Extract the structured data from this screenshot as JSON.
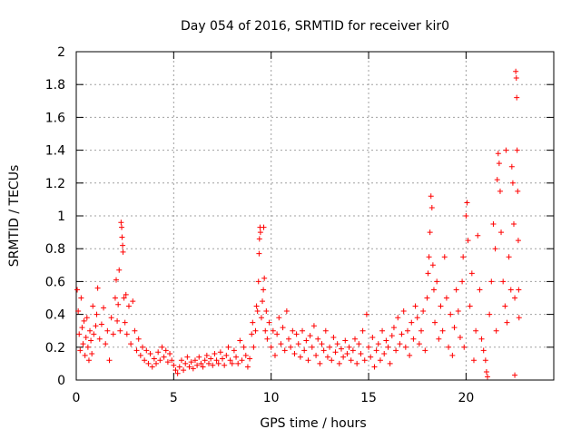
{
  "chart_data": {
    "type": "scatter",
    "title": "Day 054 of 2016, SRMTID for receiver kir0",
    "xlabel": "GPS time / hours",
    "ylabel": "SRMTID / TECUs",
    "xlim": [
      0,
      24.5
    ],
    "ylim": [
      0,
      2
    ],
    "xticks": [
      0,
      5,
      10,
      15,
      20
    ],
    "yticks": [
      0,
      0.2,
      0.4,
      0.6,
      0.8,
      1,
      1.2,
      1.4,
      1.6,
      1.8,
      2
    ],
    "grid": true,
    "marker": "+",
    "color": "#ff0000",
    "series": [
      {
        "name": "SRMTID",
        "points": [
          [
            0.05,
            0.55
          ],
          [
            0.1,
            0.42
          ],
          [
            0.15,
            0.28
          ],
          [
            0.2,
            0.18
          ],
          [
            0.25,
            0.5
          ],
          [
            0.3,
            0.32
          ],
          [
            0.35,
            0.22
          ],
          [
            0.4,
            0.36
          ],
          [
            0.45,
            0.15
          ],
          [
            0.5,
            0.26
          ],
          [
            0.55,
            0.38
          ],
          [
            0.6,
            0.2
          ],
          [
            0.65,
            0.12
          ],
          [
            0.7,
            0.3
          ],
          [
            0.75,
            0.24
          ],
          [
            0.8,
            0.16
          ],
          [
            0.85,
            0.45
          ],
          [
            0.9,
            0.28
          ],
          [
            1.0,
            0.33
          ],
          [
            1.05,
            0.4
          ],
          [
            1.1,
            0.56
          ],
          [
            1.2,
            0.25
          ],
          [
            1.3,
            0.34
          ],
          [
            1.4,
            0.44
          ],
          [
            1.5,
            0.22
          ],
          [
            1.6,
            0.3
          ],
          [
            1.7,
            0.12
          ],
          [
            1.8,
            0.38
          ],
          [
            1.9,
            0.28
          ],
          [
            2.0,
            0.5
          ],
          [
            2.05,
            0.61
          ],
          [
            2.1,
            0.36
          ],
          [
            2.15,
            0.46
          ],
          [
            2.2,
            0.67
          ],
          [
            2.25,
            0.3
          ],
          [
            2.3,
            0.96
          ],
          [
            2.33,
            0.93
          ],
          [
            2.35,
            0.87
          ],
          [
            2.38,
            0.82
          ],
          [
            2.4,
            0.78
          ],
          [
            2.45,
            0.5
          ],
          [
            2.5,
            0.35
          ],
          [
            2.55,
            0.52
          ],
          [
            2.6,
            0.28
          ],
          [
            2.7,
            0.45
          ],
          [
            2.8,
            0.22
          ],
          [
            2.9,
            0.48
          ],
          [
            3.0,
            0.3
          ],
          [
            3.1,
            0.18
          ],
          [
            3.2,
            0.25
          ],
          [
            3.3,
            0.15
          ],
          [
            3.4,
            0.2
          ],
          [
            3.5,
            0.12
          ],
          [
            3.6,
            0.18
          ],
          [
            3.7,
            0.1
          ],
          [
            3.8,
            0.16
          ],
          [
            3.9,
            0.08
          ],
          [
            4.0,
            0.13
          ],
          [
            4.1,
            0.1
          ],
          [
            4.2,
            0.17
          ],
          [
            4.3,
            0.12
          ],
          [
            4.4,
            0.2
          ],
          [
            4.5,
            0.14
          ],
          [
            4.6,
            0.18
          ],
          [
            4.7,
            0.11
          ],
          [
            4.8,
            0.16
          ],
          [
            4.9,
            0.12
          ],
          [
            5.0,
            0.09
          ],
          [
            5.1,
            0.06
          ],
          [
            5.2,
            0.04
          ],
          [
            5.3,
            0.08
          ],
          [
            5.4,
            0.12
          ],
          [
            5.5,
            0.06
          ],
          [
            5.6,
            0.1
          ],
          [
            5.7,
            0.14
          ],
          [
            5.8,
            0.08
          ],
          [
            5.9,
            0.11
          ],
          [
            6.0,
            0.07
          ],
          [
            6.1,
            0.12
          ],
          [
            6.2,
            0.09
          ],
          [
            6.3,
            0.14
          ],
          [
            6.4,
            0.1
          ],
          [
            6.5,
            0.08
          ],
          [
            6.6,
            0.12
          ],
          [
            6.7,
            0.15
          ],
          [
            6.8,
            0.1
          ],
          [
            6.9,
            0.13
          ],
          [
            7.0,
            0.09
          ],
          [
            7.1,
            0.16
          ],
          [
            7.2,
            0.12
          ],
          [
            7.3,
            0.1
          ],
          [
            7.4,
            0.17
          ],
          [
            7.5,
            0.13
          ],
          [
            7.6,
            0.09
          ],
          [
            7.7,
            0.15
          ],
          [
            7.8,
            0.2
          ],
          [
            7.9,
            0.12
          ],
          [
            8.0,
            0.1
          ],
          [
            8.1,
            0.18
          ],
          [
            8.2,
            0.14
          ],
          [
            8.3,
            0.1
          ],
          [
            8.4,
            0.24
          ],
          [
            8.5,
            0.12
          ],
          [
            8.6,
            0.2
          ],
          [
            8.7,
            0.15
          ],
          [
            8.8,
            0.08
          ],
          [
            8.9,
            0.13
          ],
          [
            9.0,
            0.28
          ],
          [
            9.05,
            0.35
          ],
          [
            9.1,
            0.2
          ],
          [
            9.2,
            0.3
          ],
          [
            9.25,
            0.45
          ],
          [
            9.3,
            0.42
          ],
          [
            9.35,
            0.6
          ],
          [
            9.38,
            0.77
          ],
          [
            9.4,
            0.86
          ],
          [
            9.43,
            0.93
          ],
          [
            9.45,
            0.9
          ],
          [
            9.5,
            0.38
          ],
          [
            9.55,
            0.48
          ],
          [
            9.6,
            0.55
          ],
          [
            9.62,
            0.93
          ],
          [
            9.65,
            0.62
          ],
          [
            9.7,
            0.3
          ],
          [
            9.75,
            0.42
          ],
          [
            9.8,
            0.25
          ],
          [
            9.9,
            0.35
          ],
          [
            10.0,
            0.2
          ],
          [
            10.1,
            0.3
          ],
          [
            10.2,
            0.15
          ],
          [
            10.3,
            0.28
          ],
          [
            10.4,
            0.38
          ],
          [
            10.5,
            0.22
          ],
          [
            10.6,
            0.32
          ],
          [
            10.7,
            0.18
          ],
          [
            10.8,
            0.42
          ],
          [
            10.9,
            0.25
          ],
          [
            11.0,
            0.2
          ],
          [
            11.1,
            0.3
          ],
          [
            11.2,
            0.16
          ],
          [
            11.3,
            0.28
          ],
          [
            11.4,
            0.22
          ],
          [
            11.5,
            0.14
          ],
          [
            11.6,
            0.3
          ],
          [
            11.7,
            0.18
          ],
          [
            11.8,
            0.24
          ],
          [
            11.9,
            0.12
          ],
          [
            12.0,
            0.27
          ],
          [
            12.1,
            0.2
          ],
          [
            12.2,
            0.33
          ],
          [
            12.3,
            0.15
          ],
          [
            12.4,
            0.25
          ],
          [
            12.5,
            0.1
          ],
          [
            12.6,
            0.22
          ],
          [
            12.7,
            0.18
          ],
          [
            12.8,
            0.3
          ],
          [
            12.9,
            0.14
          ],
          [
            13.0,
            0.2
          ],
          [
            13.1,
            0.12
          ],
          [
            13.2,
            0.26
          ],
          [
            13.3,
            0.17
          ],
          [
            13.4,
            0.22
          ],
          [
            13.5,
            0.1
          ],
          [
            13.6,
            0.19
          ],
          [
            13.7,
            0.14
          ],
          [
            13.8,
            0.24
          ],
          [
            13.9,
            0.16
          ],
          [
            14.0,
            0.2
          ],
          [
            14.1,
            0.12
          ],
          [
            14.2,
            0.18
          ],
          [
            14.3,
            0.25
          ],
          [
            14.4,
            0.1
          ],
          [
            14.5,
            0.22
          ],
          [
            14.6,
            0.16
          ],
          [
            14.7,
            0.3
          ],
          [
            14.8,
            0.12
          ],
          [
            14.9,
            0.4
          ],
          [
            15.0,
            0.2
          ],
          [
            15.1,
            0.14
          ],
          [
            15.2,
            0.26
          ],
          [
            15.3,
            0.08
          ],
          [
            15.4,
            0.18
          ],
          [
            15.5,
            0.22
          ],
          [
            15.6,
            0.12
          ],
          [
            15.7,
            0.3
          ],
          [
            15.8,
            0.16
          ],
          [
            15.9,
            0.24
          ],
          [
            16.0,
            0.2
          ],
          [
            16.1,
            0.1
          ],
          [
            16.2,
            0.27
          ],
          [
            16.3,
            0.32
          ],
          [
            16.4,
            0.18
          ],
          [
            16.5,
            0.38
          ],
          [
            16.6,
            0.22
          ],
          [
            16.7,
            0.28
          ],
          [
            16.8,
            0.42
          ],
          [
            16.9,
            0.2
          ],
          [
            17.0,
            0.3
          ],
          [
            17.1,
            0.15
          ],
          [
            17.2,
            0.35
          ],
          [
            17.3,
            0.25
          ],
          [
            17.4,
            0.45
          ],
          [
            17.5,
            0.38
          ],
          [
            17.6,
            0.22
          ],
          [
            17.7,
            0.3
          ],
          [
            17.8,
            0.42
          ],
          [
            17.9,
            0.18
          ],
          [
            18.0,
            0.5
          ],
          [
            18.05,
            0.65
          ],
          [
            18.1,
            0.75
          ],
          [
            18.15,
            0.9
          ],
          [
            18.2,
            1.12
          ],
          [
            18.25,
            1.05
          ],
          [
            18.3,
            0.7
          ],
          [
            18.35,
            0.55
          ],
          [
            18.4,
            0.35
          ],
          [
            18.5,
            0.6
          ],
          [
            18.6,
            0.25
          ],
          [
            18.7,
            0.45
          ],
          [
            18.8,
            0.3
          ],
          [
            18.9,
            0.75
          ],
          [
            19.0,
            0.5
          ],
          [
            19.1,
            0.2
          ],
          [
            19.2,
            0.4
          ],
          [
            19.3,
            0.15
          ],
          [
            19.4,
            0.32
          ],
          [
            19.5,
            0.55
          ],
          [
            19.6,
            0.42
          ],
          [
            19.7,
            0.26
          ],
          [
            19.8,
            0.6
          ],
          [
            19.85,
            0.75
          ],
          [
            19.9,
            0.2
          ],
          [
            20.0,
            1.0
          ],
          [
            20.05,
            1.08
          ],
          [
            20.1,
            0.85
          ],
          [
            20.2,
            0.45
          ],
          [
            20.3,
            0.65
          ],
          [
            20.4,
            0.12
          ],
          [
            20.5,
            0.3
          ],
          [
            20.6,
            0.88
          ],
          [
            20.7,
            0.55
          ],
          [
            20.8,
            0.25
          ],
          [
            20.9,
            0.18
          ],
          [
            21.0,
            0.12
          ],
          [
            21.05,
            0.05
          ],
          [
            21.1,
            0.02
          ],
          [
            21.2,
            0.4
          ],
          [
            21.3,
            0.6
          ],
          [
            21.4,
            0.95
          ],
          [
            21.5,
            0.8
          ],
          [
            21.55,
            0.3
          ],
          [
            21.6,
            1.22
          ],
          [
            21.65,
            1.38
          ],
          [
            21.7,
            1.32
          ],
          [
            21.75,
            1.15
          ],
          [
            21.8,
            0.9
          ],
          [
            21.9,
            0.6
          ],
          [
            22.0,
            0.45
          ],
          [
            22.05,
            1.4
          ],
          [
            22.1,
            0.35
          ],
          [
            22.2,
            0.75
          ],
          [
            22.3,
            0.55
          ],
          [
            22.35,
            1.3
          ],
          [
            22.4,
            1.2
          ],
          [
            22.45,
            0.95
          ],
          [
            22.5,
            0.5
          ],
          [
            22.55,
            1.88
          ],
          [
            22.58,
            1.84
          ],
          [
            22.6,
            1.72
          ],
          [
            22.62,
            1.4
          ],
          [
            22.65,
            1.15
          ],
          [
            22.68,
            0.85
          ],
          [
            22.7,
            0.55
          ],
          [
            22.72,
            0.38
          ],
          [
            22.5,
            0.03
          ]
        ]
      }
    ]
  }
}
